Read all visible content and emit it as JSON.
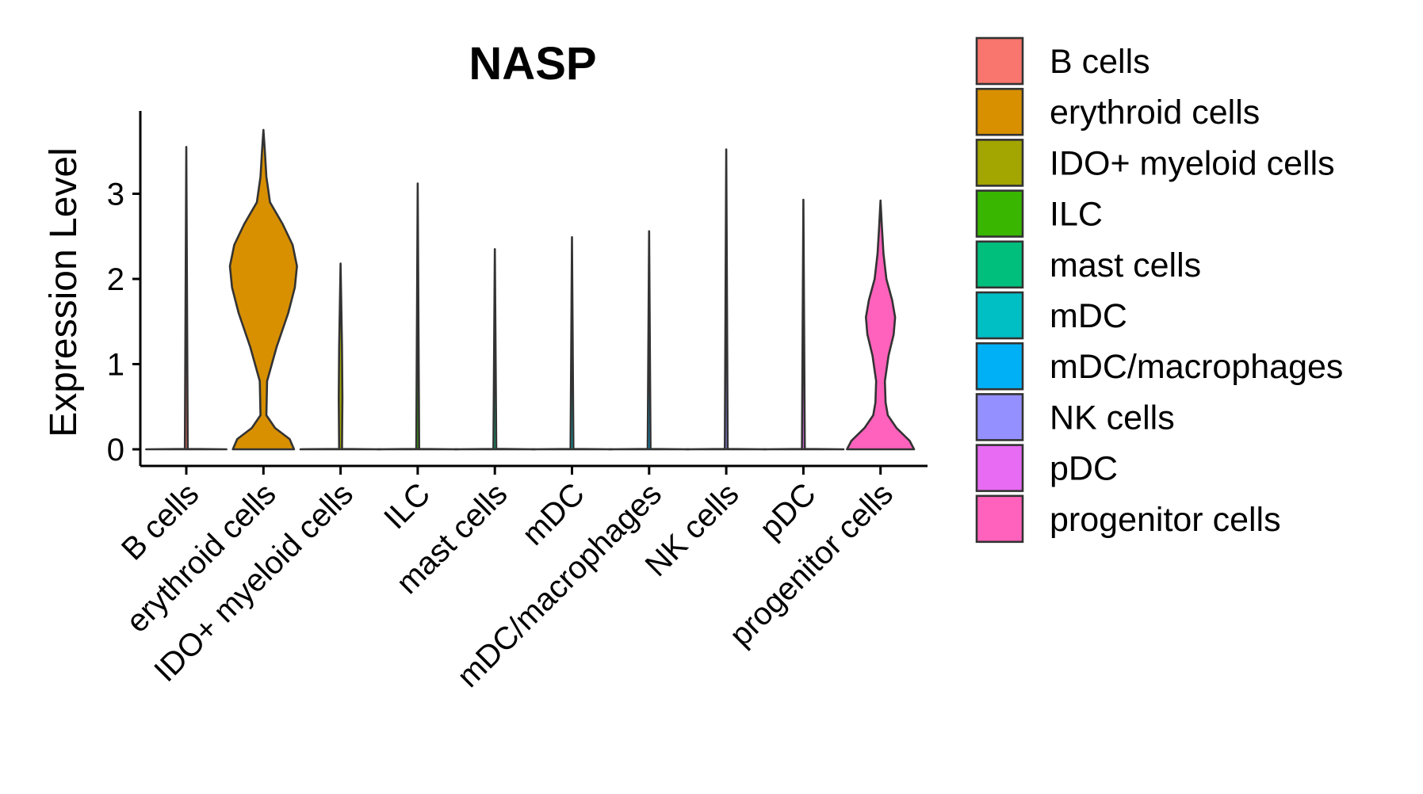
{
  "chart_data": {
    "type": "violin",
    "title": "NASP",
    "xlabel": "",
    "ylabel": "Expression Level",
    "ylim": [
      -0.18,
      3.95
    ],
    "yticks": [
      0,
      1,
      2,
      3
    ],
    "yticklabels": [
      "0",
      "1",
      "2",
      "3"
    ],
    "grid": false,
    "legend_position": "right",
    "categories": [
      "B cells",
      "erythroid cells",
      "IDO+ myeloid cells",
      "ILC",
      "mast cells",
      "mDC",
      "mDC/macrophages",
      "NK cells",
      "pDC",
      "progenitor cells"
    ],
    "series": [
      {
        "name": "B cells",
        "color": "#F8766D",
        "max": 3.55,
        "profile": [
          [
            0,
            0.55
          ],
          [
            0.005,
            0.02
          ],
          [
            3.55,
            0.0
          ]
        ]
      },
      {
        "name": "erythroid cells",
        "color": "#D89000",
        "max": 3.75,
        "profile": [
          [
            0,
            0.42
          ],
          [
            0.12,
            0.36
          ],
          [
            0.25,
            0.16
          ],
          [
            0.4,
            0.04
          ],
          [
            0.8,
            0.05
          ],
          [
            1.2,
            0.18
          ],
          [
            1.6,
            0.34
          ],
          [
            1.9,
            0.43
          ],
          [
            2.15,
            0.46
          ],
          [
            2.4,
            0.4
          ],
          [
            2.65,
            0.26
          ],
          [
            2.9,
            0.09
          ],
          [
            3.2,
            0.04
          ],
          [
            3.5,
            0.02
          ],
          [
            3.75,
            0.0
          ]
        ]
      },
      {
        "name": "IDO+ myeloid cells",
        "color": "#A3A500",
        "max": 2.18,
        "profile": [
          [
            0,
            0.55
          ],
          [
            0.005,
            0.02
          ],
          [
            0.6,
            0.025
          ],
          [
            1.2,
            0.02
          ],
          [
            2.18,
            0.0
          ]
        ]
      },
      {
        "name": "ILC",
        "color": "#39B600",
        "max": 3.12,
        "profile": [
          [
            0,
            0.55
          ],
          [
            0.005,
            0.02
          ],
          [
            3.12,
            0.0
          ]
        ]
      },
      {
        "name": "mast cells",
        "color": "#00BF7D",
        "max": 2.35,
        "profile": [
          [
            0,
            0.55
          ],
          [
            0.005,
            0.02
          ],
          [
            2.35,
            0.0
          ]
        ]
      },
      {
        "name": "mDC",
        "color": "#00BFC4",
        "max": 2.49,
        "profile": [
          [
            0,
            0.55
          ],
          [
            0.005,
            0.02
          ],
          [
            2.49,
            0.0
          ]
        ]
      },
      {
        "name": "mDC/macrophages",
        "color": "#00B0F6",
        "max": 2.56,
        "profile": [
          [
            0,
            0.55
          ],
          [
            0.005,
            0.02
          ],
          [
            2.56,
            0.0
          ]
        ]
      },
      {
        "name": "NK cells",
        "color": "#9590FF",
        "max": 3.52,
        "profile": [
          [
            0,
            0.55
          ],
          [
            0.005,
            0.02
          ],
          [
            3.52,
            0.0
          ]
        ]
      },
      {
        "name": "pDC",
        "color": "#E76BF3",
        "max": 2.93,
        "profile": [
          [
            0,
            0.55
          ],
          [
            0.005,
            0.02
          ],
          [
            2.93,
            0.0
          ]
        ]
      },
      {
        "name": "progenitor cells",
        "color": "#FF62BC",
        "max": 2.92,
        "profile": [
          [
            0,
            0.46
          ],
          [
            0.1,
            0.4
          ],
          [
            0.25,
            0.22
          ],
          [
            0.4,
            0.1
          ],
          [
            0.55,
            0.07
          ],
          [
            0.8,
            0.06
          ],
          [
            1.1,
            0.11
          ],
          [
            1.35,
            0.18
          ],
          [
            1.55,
            0.2
          ],
          [
            1.75,
            0.16
          ],
          [
            2.0,
            0.08
          ],
          [
            2.3,
            0.04
          ],
          [
            2.6,
            0.02
          ],
          [
            2.92,
            0.0
          ]
        ]
      }
    ]
  }
}
